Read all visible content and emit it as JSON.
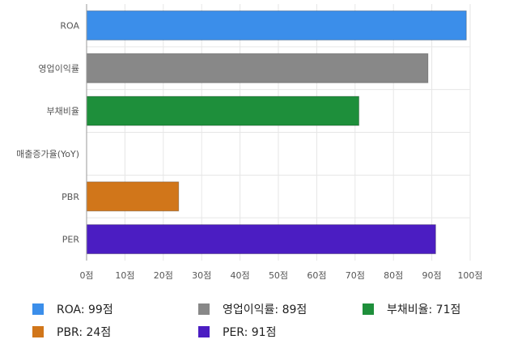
{
  "chart_data": {
    "type": "bar",
    "orientation": "horizontal",
    "categories": [
      "ROA",
      "영업이익률",
      "부채비율",
      "매출증가율(YoY)",
      "PBR",
      "PER"
    ],
    "values": [
      99,
      89,
      71,
      0,
      24,
      91
    ],
    "colors": [
      "#3b8eea",
      "#888888",
      "#1e8f3b",
      "#9e9e9e",
      "#d1761a",
      "#4b1dc2"
    ],
    "xlim": [
      0,
      100
    ],
    "x_ticks": [
      0,
      10,
      20,
      30,
      40,
      50,
      60,
      70,
      80,
      90,
      100
    ],
    "x_tick_labels": [
      "0점",
      "10점",
      "20점",
      "30점",
      "40점",
      "50점",
      "60점",
      "70점",
      "80점",
      "90점",
      "100점"
    ],
    "grid": true,
    "legend_position": "bottom",
    "legend": [
      {
        "label": "ROA: 99점",
        "color": "#3b8eea"
      },
      {
        "label": "영업이익률: 89점",
        "color": "#888888"
      },
      {
        "label": "부채비율: 71점",
        "color": "#1e8f3b"
      },
      {
        "label": "PBR: 24점",
        "color": "#d1761a"
      },
      {
        "label": "PER: 91점",
        "color": "#4b1dc2"
      }
    ]
  }
}
